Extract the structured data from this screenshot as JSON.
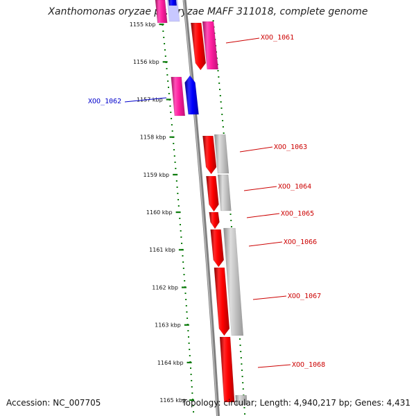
{
  "title": "Xanthomonas oryzae pv. oryzae MAFF 311018, complete genome",
  "footer": {
    "accession": "Accession: NC_007705",
    "topology": "Topology: circular; Length: 4,940,217 bp; Genes: 4,431"
  },
  "ruler": {
    "ticks": [
      "1155 kbp",
      "1156 kbp",
      "1157 kbp",
      "1158 kbp",
      "1159 kbp",
      "1160 kbp",
      "1161 kbp",
      "1162 kbp",
      "1163 kbp",
      "1164 kbp",
      "1165 kbp"
    ]
  },
  "colors": {
    "forward_cds": "#ff0000",
    "reverse_cds": "#0000ff",
    "magenta_feature": "#ff1fa0",
    "gray_feature": "#b8b8b8",
    "forward_label": "#cc0000",
    "reverse_label": "#0000cc",
    "axis": "#808080",
    "dotted_track": "#0a7a0a"
  },
  "genes": [
    {
      "label": "XOO_1061",
      "strand": "forward"
    },
    {
      "label": "XOO_1062",
      "strand": "reverse"
    },
    {
      "label": "XOO_1063",
      "strand": "forward"
    },
    {
      "label": "XOO_1064",
      "strand": "forward"
    },
    {
      "label": "XOO_1065",
      "strand": "forward"
    },
    {
      "label": "XOO_1066",
      "strand": "forward"
    },
    {
      "label": "XOO_1067",
      "strand": "forward"
    },
    {
      "label": "XOO_1068",
      "strand": "forward"
    }
  ]
}
